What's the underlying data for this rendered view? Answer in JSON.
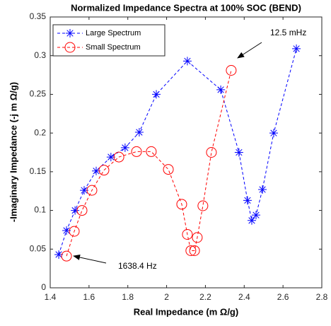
{
  "chart_data": {
    "type": "line",
    "title": "Normalized Impedance Spectra at 100% SOC (BEND)",
    "x_label": "Real Impedance (m Ω/g)",
    "y_label": "-Imaginary Impedance (-j m Ω/g)",
    "xlim": [
      1.4,
      2.8
    ],
    "xticks": [
      1.4,
      1.6,
      1.8,
      2,
      2.2,
      2.4,
      2.6,
      2.8
    ],
    "ylim": [
      0,
      0.35
    ],
    "yticks": [
      0,
      0.05,
      0.1,
      0.15,
      0.2,
      0.25,
      0.3,
      0.35
    ],
    "grid": false,
    "legend": "upper left",
    "series": [
      {
        "name": "Large Spectrum",
        "color": "#0000ff",
        "marker": "star",
        "x": [
          1.444,
          1.484,
          1.528,
          1.575,
          1.637,
          1.713,
          1.786,
          1.859,
          1.947,
          2.107,
          2.279,
          2.373,
          2.417,
          2.439,
          2.461,
          2.494,
          2.552,
          2.669
        ],
        "values": [
          0.043,
          0.074,
          0.1,
          0.126,
          0.151,
          0.169,
          0.181,
          0.201,
          0.25,
          0.293,
          0.256,
          0.175,
          0.113,
          0.087,
          0.094,
          0.127,
          0.2,
          0.309
        ]
      },
      {
        "name": "Small Spectrum",
        "color": "#ff0000",
        "marker": "circle",
        "x": [
          1.484,
          1.524,
          1.564,
          1.615,
          1.677,
          1.754,
          1.845,
          1.921,
          2.009,
          2.078,
          2.107,
          2.125,
          2.144,
          2.158,
          2.187,
          2.231,
          2.333
        ],
        "values": [
          0.041,
          0.073,
          0.1,
          0.126,
          0.152,
          0.169,
          0.176,
          0.176,
          0.153,
          0.108,
          0.069,
          0.048,
          0.048,
          0.065,
          0.106,
          0.175,
          0.281
        ]
      }
    ],
    "annotations": [
      "12.5 mHz",
      "1638.4 Hz"
    ]
  }
}
